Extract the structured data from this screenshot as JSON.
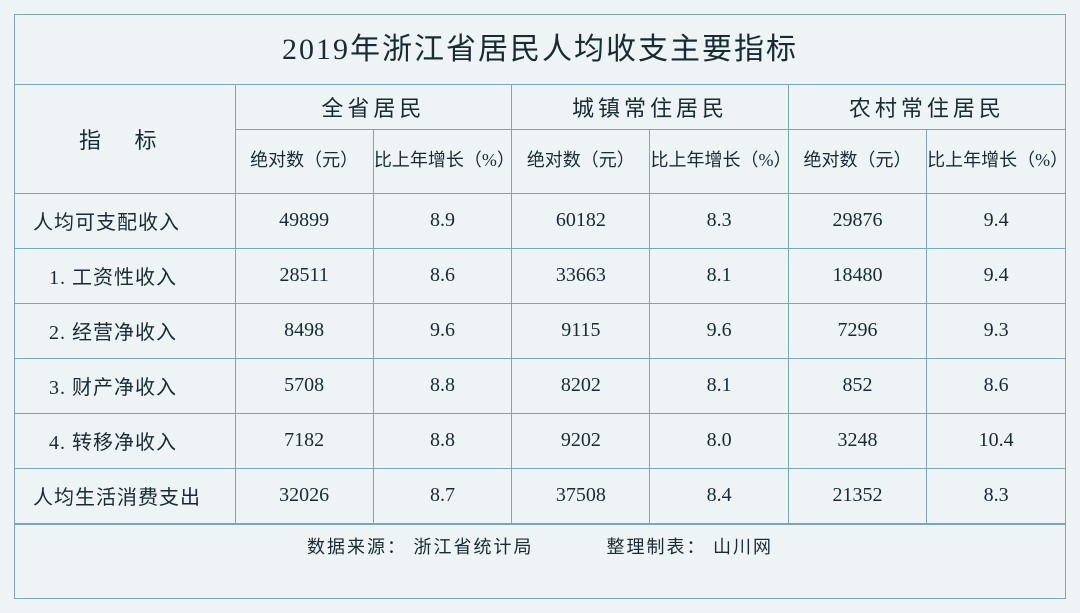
{
  "title": "2019年浙江省居民人均收支主要指标",
  "header": {
    "indicator": "指 标",
    "groups": [
      "全省居民",
      "城镇常住居民",
      "农村常住居民"
    ],
    "sub_abs": "绝对数（元）",
    "sub_growth": "比上年增长（%）"
  },
  "rows": [
    {
      "label": "人均可支配收入",
      "sub": false,
      "cells": [
        "49899",
        "8.9",
        "60182",
        "8.3",
        "29876",
        "9.4"
      ]
    },
    {
      "label": "1. 工资性收入",
      "sub": true,
      "cells": [
        "28511",
        "8.6",
        "33663",
        "8.1",
        "18480",
        "9.4"
      ]
    },
    {
      "label": "2. 经营净收入",
      "sub": true,
      "cells": [
        "8498",
        "9.6",
        "9115",
        "9.6",
        "7296",
        "9.3"
      ]
    },
    {
      "label": "3. 财产净收入",
      "sub": true,
      "cells": [
        "5708",
        "8.8",
        "8202",
        "8.1",
        "852",
        "8.6"
      ]
    },
    {
      "label": "4. 转移净收入",
      "sub": true,
      "cells": [
        "7182",
        "8.8",
        "9202",
        "8.0",
        "3248",
        "10.4"
      ]
    },
    {
      "label": "人均生活消费支出",
      "sub": false,
      "cells": [
        "32026",
        "8.7",
        "37508",
        "8.4",
        "21352",
        "8.3"
      ]
    }
  ],
  "footer": {
    "source_label": "数据来源：",
    "source_value": "浙江省统计局",
    "compiled_label": "整理制表：",
    "compiled_value": "山川网"
  },
  "style": {
    "border_color": "#7aa6b8",
    "background_color": "#eef4f6",
    "text_color": "#1a2a33",
    "title_fontsize": 30,
    "cell_fontsize": 20,
    "sub_header_fontsize": 18
  }
}
